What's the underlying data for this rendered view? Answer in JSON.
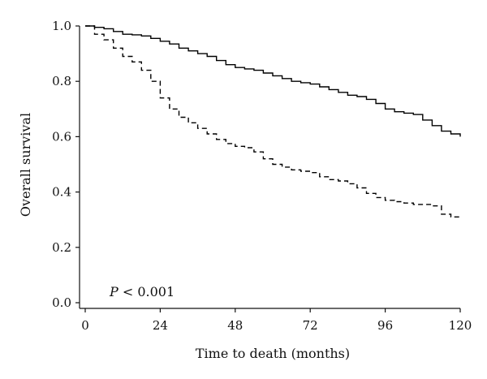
{
  "chart_data": {
    "type": "line",
    "xlabel": "Time to death (months)",
    "ylabel": "Overall survival",
    "xlim": [
      0,
      120
    ],
    "ylim": [
      0,
      1.0
    ],
    "x_ticks": [
      "0",
      "24",
      "48",
      "72",
      "96",
      "120"
    ],
    "y_ticks": [
      "0.0",
      "0.2",
      "0.4",
      "0.6",
      "0.8",
      "1.0"
    ],
    "grid": false,
    "annotation": {
      "italic": "P",
      "text": " < 0.001"
    },
    "series": [
      {
        "line_style": "solid",
        "color": "#000000",
        "points": [
          [
            0,
            1.0
          ],
          [
            3,
            0.995
          ],
          [
            6,
            0.99
          ],
          [
            9,
            0.98
          ],
          [
            12,
            0.97
          ],
          [
            15,
            0.968
          ],
          [
            18,
            0.964
          ],
          [
            21,
            0.955
          ],
          [
            24,
            0.945
          ],
          [
            27,
            0.935
          ],
          [
            30,
            0.92
          ],
          [
            33,
            0.91
          ],
          [
            36,
            0.9
          ],
          [
            39,
            0.89
          ],
          [
            42,
            0.875
          ],
          [
            45,
            0.86
          ],
          [
            48,
            0.85
          ],
          [
            51,
            0.845
          ],
          [
            54,
            0.84
          ],
          [
            57,
            0.83
          ],
          [
            60,
            0.82
          ],
          [
            63,
            0.81
          ],
          [
            66,
            0.8
          ],
          [
            69,
            0.795
          ],
          [
            72,
            0.79
          ],
          [
            75,
            0.78
          ],
          [
            78,
            0.77
          ],
          [
            81,
            0.76
          ],
          [
            84,
            0.75
          ],
          [
            87,
            0.745
          ],
          [
            90,
            0.735
          ],
          [
            93,
            0.72
          ],
          [
            96,
            0.7
          ],
          [
            99,
            0.69
          ],
          [
            102,
            0.685
          ],
          [
            105,
            0.68
          ],
          [
            108,
            0.66
          ],
          [
            111,
            0.64
          ],
          [
            114,
            0.62
          ],
          [
            117,
            0.61
          ],
          [
            120,
            0.6
          ]
        ]
      },
      {
        "line_style": "dashed",
        "color": "#000000",
        "points": [
          [
            0,
            1.0
          ],
          [
            3,
            0.97
          ],
          [
            6,
            0.95
          ],
          [
            9,
            0.92
          ],
          [
            12,
            0.89
          ],
          [
            15,
            0.87
          ],
          [
            18,
            0.84
          ],
          [
            21,
            0.8
          ],
          [
            24,
            0.74
          ],
          [
            27,
            0.7
          ],
          [
            30,
            0.67
          ],
          [
            33,
            0.65
          ],
          [
            36,
            0.63
          ],
          [
            39,
            0.61
          ],
          [
            42,
            0.59
          ],
          [
            45,
            0.575
          ],
          [
            48,
            0.565
          ],
          [
            51,
            0.56
          ],
          [
            54,
            0.545
          ],
          [
            57,
            0.52
          ],
          [
            60,
            0.5
          ],
          [
            63,
            0.49
          ],
          [
            66,
            0.48
          ],
          [
            69,
            0.475
          ],
          [
            72,
            0.47
          ],
          [
            75,
            0.455
          ],
          [
            78,
            0.445
          ],
          [
            81,
            0.44
          ],
          [
            84,
            0.43
          ],
          [
            87,
            0.415
          ],
          [
            90,
            0.395
          ],
          [
            93,
            0.38
          ],
          [
            96,
            0.37
          ],
          [
            99,
            0.365
          ],
          [
            102,
            0.36
          ],
          [
            105,
            0.355
          ],
          [
            108,
            0.355
          ],
          [
            111,
            0.35
          ],
          [
            114,
            0.32
          ],
          [
            117,
            0.31
          ],
          [
            120,
            0.305
          ]
        ]
      }
    ]
  }
}
